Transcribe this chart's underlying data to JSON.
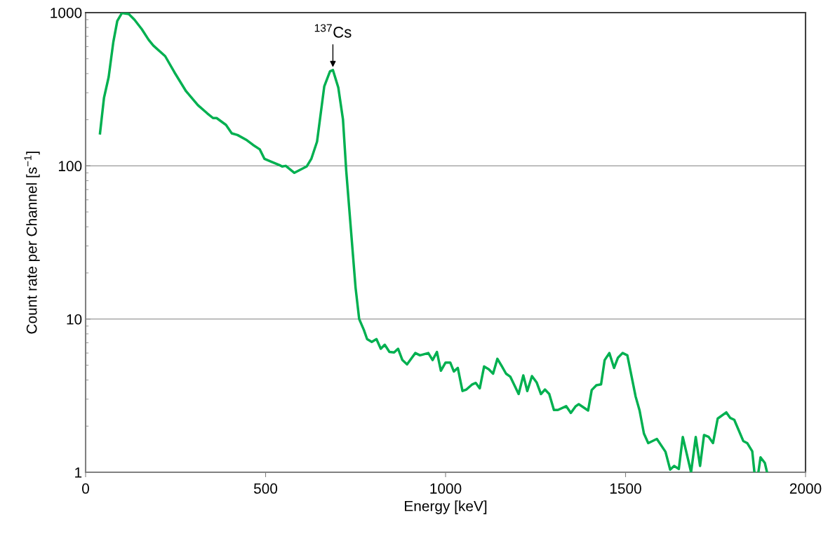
{
  "chart_data": {
    "type": "line",
    "xlabel": "Energy [keV]",
    "ylabel": "Count rate per Channel [s$^{−1}$]",
    "annotations": [
      {
        "text": "$^{137}$Cs",
        "x": 687,
        "y": 422
      }
    ],
    "log": "y",
    "grid": "y",
    "legend": false,
    "marker": "none",
    "line_style": "solid",
    "xlim": [
      0,
      2000
    ],
    "xticks": [
      0,
      500,
      1000,
      1500,
      2000
    ],
    "ylim": [
      1,
      1000
    ],
    "yticks": [
      1,
      10,
      100,
      1000
    ],
    "series": [
      {
        "color": "#00b050",
        "x": [
          40,
          51,
          64,
          77,
          88,
          101,
          120,
          136,
          156,
          175,
          188,
          221,
          247,
          279,
          312,
          338,
          354,
          364,
          390,
          406,
          422,
          448,
          465,
          484,
          497,
          513,
          539,
          546,
          556,
          580,
          595,
          614,
          627,
          643,
          663,
          679,
          687,
          702,
          715,
          724,
          737,
          750,
          760,
          773,
          782,
          795,
          808,
          820,
          831,
          844,
          857,
          868,
          880,
          893,
          916,
          929,
          952,
          964,
          976,
          987,
          1000,
          1013,
          1023,
          1034,
          1047,
          1058,
          1073,
          1084,
          1095,
          1107,
          1120,
          1132,
          1144,
          1156,
          1168,
          1180,
          1203,
          1216,
          1227,
          1240,
          1253,
          1265,
          1276,
          1288,
          1301,
          1312,
          1335,
          1348,
          1361,
          1370,
          1396,
          1406,
          1419,
          1432,
          1442,
          1455,
          1468,
          1479,
          1492,
          1505,
          1528,
          1539,
          1551,
          1563,
          1587,
          1611,
          1624,
          1635,
          1648,
          1659,
          1682,
          1695,
          1707,
          1718,
          1731,
          1743,
          1756,
          1780,
          1791,
          1802,
          1827,
          1838,
          1852,
          1858,
          1863,
          1869,
          1875,
          1887,
          1893
        ],
        "values": [
          163,
          277,
          379,
          643,
          882,
          995,
          980,
          898,
          780,
          665,
          610,
          520,
          407,
          307,
          249,
          220,
          205,
          205,
          185,
          163,
          159,
          147,
          137,
          128,
          111,
          107,
          101,
          99,
          100,
          90,
          94,
          99,
          111,
          144,
          330,
          414,
          422,
          324,
          201,
          93,
          38.6,
          16,
          10,
          8.5,
          7.4,
          7.1,
          7.4,
          6.4,
          6.8,
          6.1,
          6.05,
          6.4,
          5.4,
          5.06,
          6.0,
          5.8,
          6.0,
          5.4,
          6.1,
          4.6,
          5.2,
          5.2,
          4.55,
          4.8,
          3.39,
          3.47,
          3.73,
          3.83,
          3.53,
          4.9,
          4.7,
          4.4,
          5.5,
          4.93,
          4.4,
          4.2,
          3.24,
          4.29,
          3.39,
          4.24,
          3.86,
          3.24,
          3.47,
          3.24,
          2.55,
          2.55,
          2.7,
          2.44,
          2.69,
          2.78,
          2.53,
          3.44,
          3.7,
          3.75,
          5.4,
          6.0,
          4.8,
          5.6,
          6.0,
          5.8,
          3.12,
          2.53,
          1.79,
          1.55,
          1.65,
          1.36,
          1.04,
          1.1,
          1.05,
          1.7,
          1.0,
          1.7,
          1.1,
          1.75,
          1.7,
          1.55,
          2.24,
          2.46,
          2.26,
          2.2,
          1.6,
          1.55,
          1.37,
          1.0,
          null,
          1.0,
          1.25,
          1.15,
          1.0
        ]
      }
    ]
  }
}
